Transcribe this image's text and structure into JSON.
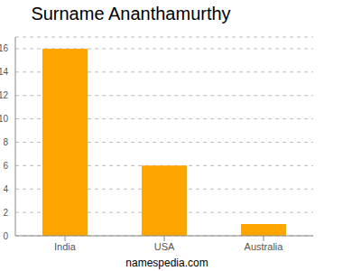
{
  "chart_data": {
    "type": "bar",
    "title": "Surname Ananthamurthy",
    "source": "namespedia.com",
    "categories": [
      "India",
      "USA",
      "Australia"
    ],
    "values": [
      16,
      6,
      1
    ],
    "color": "#ffa500",
    "ylim": [
      0,
      17
    ],
    "yticks": [
      0,
      2,
      4,
      6,
      8,
      10,
      12,
      14,
      16
    ],
    "grid": true
  }
}
